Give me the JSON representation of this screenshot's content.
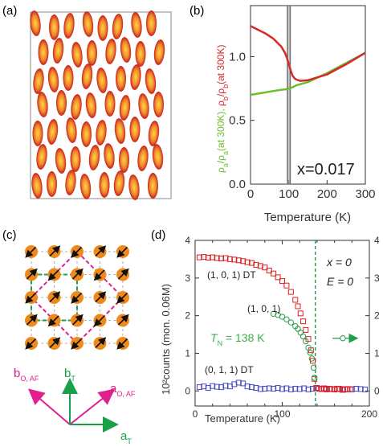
{
  "panels": {
    "a": {
      "label": "(a)"
    },
    "b": {
      "label": "(b)"
    },
    "c": {
      "label": "(c)"
    },
    "d": {
      "label": "(d)"
    }
  },
  "chart_data": [
    {
      "panel": "b",
      "type": "line",
      "xlabel": "Temperature (K)",
      "ylabel_parts": [
        {
          "text": "ρ",
          "color": "#6cbf2c"
        },
        {
          "text": "a",
          "color": "#6cbf2c",
          "sub": true
        },
        {
          "text": "/ρ",
          "color": "#6cbf2c"
        },
        {
          "text": "a",
          "color": "#6cbf2c",
          "sub": true
        },
        {
          "text": "(at 300K), ",
          "color": "#6cbf2c"
        },
        {
          "text": "ρ",
          "color": "#d42a2a"
        },
        {
          "text": "b",
          "color": "#d42a2a",
          "sub": true
        },
        {
          "text": "/ρ",
          "color": "#d42a2a"
        },
        {
          "text": "b",
          "color": "#d42a2a",
          "sub": true
        },
        {
          "text": "(at 300K)",
          "color": "#d42a2a"
        }
      ],
      "xlim": [
        0,
        300
      ],
      "ylim": [
        0,
        1.4
      ],
      "xticks": [
        0,
        100,
        200,
        300
      ],
      "yticks": [
        0.0,
        0.5,
        1.0
      ],
      "ytick_labels": [
        "0.0",
        "0.5",
        "1.0"
      ],
      "annotation": "x=0.017",
      "vline_T": 100,
      "series": [
        {
          "color": "#6cbf2c",
          "x": [
            0,
            20,
            40,
            60,
            80,
            95,
            100,
            110,
            120,
            150,
            200,
            250,
            300
          ],
          "y": [
            0.7,
            0.71,
            0.72,
            0.73,
            0.74,
            0.745,
            0.75,
            0.76,
            0.775,
            0.8,
            0.87,
            0.95,
            1.03
          ]
        },
        {
          "color": "#d42a2a",
          "x": [
            0,
            20,
            40,
            60,
            80,
            90,
            95,
            100,
            105,
            110,
            115,
            120,
            130,
            150,
            200,
            250,
            300
          ],
          "y": [
            1.24,
            1.21,
            1.18,
            1.14,
            1.08,
            1.03,
            0.99,
            0.94,
            0.89,
            0.85,
            0.83,
            0.82,
            0.81,
            0.815,
            0.86,
            0.94,
            1.03
          ]
        }
      ]
    },
    {
      "panel": "d",
      "type": "scatter",
      "xlabel": "Temperature (K)",
      "ylabel": "10²counts (mon. 0.06M)",
      "xlim": [
        0,
        200
      ],
      "ylim": [
        -0.4,
        4
      ],
      "xticks": [
        0,
        20,
        40,
        60,
        80,
        100,
        120,
        140,
        160,
        180,
        200
      ],
      "xtick_labels_shown": [
        0,
        50,
        100,
        150,
        200
      ],
      "yticks": [
        0,
        1,
        2,
        3,
        4
      ],
      "tn_label": "T",
      "tn_sub": "N",
      "tn_value": " = 138 K",
      "tn_T": 138,
      "x_label": "x = 0",
      "e_label": "E = 0",
      "series": [
        {
          "name": "(1, 0, 1) DT",
          "color": "#e02020",
          "marker": "square",
          "x": [
            5,
            10,
            15,
            20,
            25,
            30,
            35,
            40,
            45,
            50,
            55,
            60,
            65,
            70,
            75,
            80,
            85,
            90,
            95,
            100,
            105,
            110,
            115,
            118,
            121,
            124,
            127,
            130,
            133,
            135,
            137
          ],
          "y": [
            3.55,
            3.56,
            3.54,
            3.55,
            3.53,
            3.52,
            3.53,
            3.5,
            3.49,
            3.47,
            3.45,
            3.42,
            3.4,
            3.35,
            3.32,
            3.28,
            3.2,
            3.12,
            3.02,
            2.92,
            2.8,
            2.63,
            2.42,
            2.25,
            2.06,
            1.85,
            1.62,
            1.38,
            1.08,
            0.8,
            0.32
          ]
        },
        {
          "name": "(1, 0, 1)",
          "color": "#2a9a4a",
          "marker": "circle",
          "x": [
            90,
            95,
            100,
            105,
            110,
            115,
            118,
            121,
            124,
            127,
            130,
            132,
            134,
            136,
            137
          ],
          "y": [
            2.05,
            2.02,
            1.97,
            1.9,
            1.82,
            1.72,
            1.65,
            1.55,
            1.45,
            1.32,
            1.15,
            1.02,
            0.86,
            0.62,
            0.35
          ]
        },
        {
          "name": "(0, 1, 1) DT",
          "color": "#4a4ac8",
          "marker": "square",
          "x": [
            5,
            10,
            15,
            20,
            25,
            30,
            35,
            40,
            45,
            50,
            55,
            60,
            65,
            70,
            75,
            80,
            85,
            90,
            95,
            100,
            105,
            110,
            115,
            120,
            125,
            130,
            135,
            140,
            145,
            150,
            155,
            160,
            165,
            170,
            175,
            180,
            185,
            190,
            195
          ],
          "y": [
            0.1,
            0.12,
            0.08,
            0.13,
            0.11,
            0.1,
            0.14,
            0.12,
            0.18,
            0.22,
            0.2,
            0.12,
            0.1,
            0.08,
            0.05,
            0.06,
            0.07,
            0.06,
            0.08,
            0.05,
            0.07,
            0.04,
            0.06,
            0.05,
            0.07,
            0.04,
            0.06,
            0.08,
            0.05,
            0.06,
            0.05,
            0.04,
            0.06,
            0.03,
            0.05,
            0.04,
            0.06,
            0.05,
            0.04
          ]
        },
        {
          "name": "above TN",
          "color": "#e02020",
          "marker": "square",
          "x": [
            139,
            142,
            145,
            148,
            151,
            154,
            157,
            160,
            163,
            166,
            169,
            172,
            175,
            178
          ],
          "y": [
            0.08,
            0.06,
            0.05,
            0.07,
            0.04,
            0.06,
            0.05,
            0.04,
            0.06,
            0.05,
            0.03,
            0.05,
            0.04,
            0.05
          ]
        }
      ]
    }
  ],
  "panel_c": {
    "grid_size": 5,
    "dot_color": "#ef8a1a",
    "arrow_dirs": [
      [
        "sw",
        "ne",
        "sw",
        "ne",
        "sw"
      ],
      [
        "ne",
        "sw",
        "ne",
        "sw",
        "ne"
      ],
      [
        "sw",
        "ne",
        "sw",
        "ne",
        "sw"
      ],
      [
        "ne",
        "sw",
        "ne",
        "sw",
        "ne"
      ],
      [
        "sw",
        "ne",
        "sw",
        "ne",
        "sw"
      ]
    ],
    "axes_labels": {
      "b_O_AF": "b",
      "b_O_AF_sub": "O, AF",
      "b_T": "b",
      "b_T_sub": "T",
      "a_O_AF": "a",
      "a_O_AF_sub": "O, AF",
      "a_T": "a",
      "a_T_sub": "T"
    },
    "colors": {
      "magenta": "#e0208c",
      "green": "#1aa04a"
    }
  },
  "panel_a": {
    "ellipse_color_edge": "#c81e1e",
    "ellipse_color_center": "#ffd447"
  }
}
